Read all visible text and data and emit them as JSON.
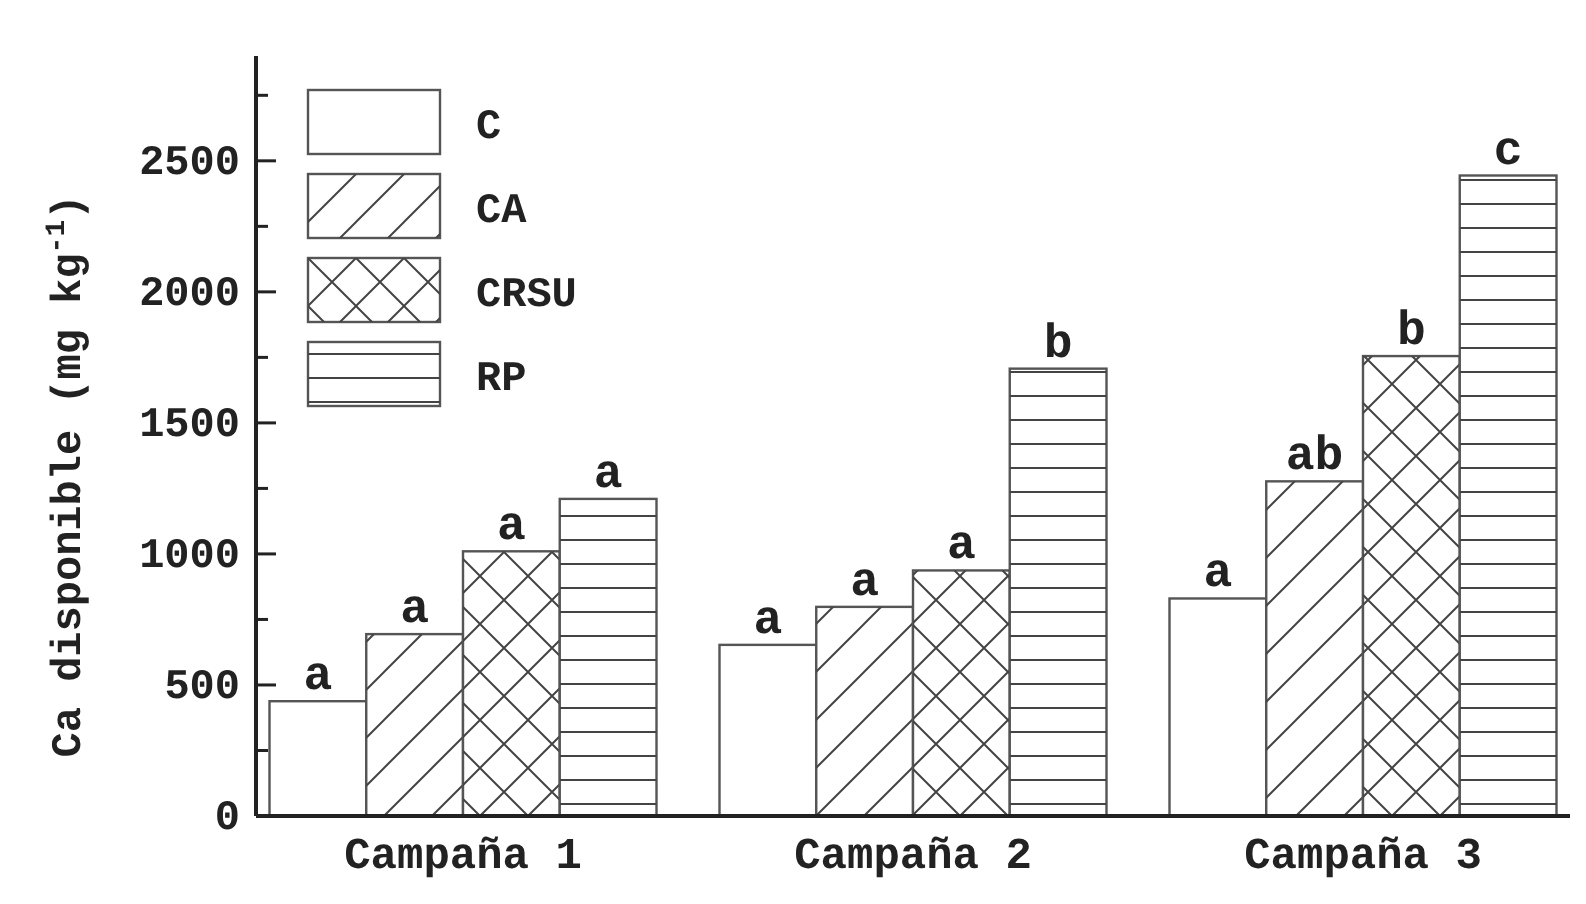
{
  "chart_data": {
    "type": "bar",
    "ylabel": "Ca disponible (mg kg$^{-1}$)",
    "categories": [
      "Campaña 1",
      "Campaña 2",
      "Campaña 3"
    ],
    "series": [
      {
        "name": "C",
        "color": "#ffffff",
        "values": [
          438,
          653,
          830
        ],
        "value_labels": [
          "a",
          "a",
          "a"
        ]
      },
      {
        "name": "CA",
        "color": "#ffffff",
        "values": [
          694,
          798,
          1277
        ],
        "value_labels": [
          "a",
          "a",
          "ab"
        ]
      },
      {
        "name": "CRSU",
        "color": "#ffffff",
        "values": [
          1010,
          937,
          1755
        ],
        "value_labels": [
          "a",
          "a",
          "b"
        ]
      },
      {
        "name": "RP",
        "color": "#ffffff",
        "values": [
          1210,
          1707,
          2444
        ],
        "value_labels": [
          "a",
          "b",
          "c"
        ]
      }
    ],
    "ylim": [
      0,
      2900
    ],
    "yticks": [
      0,
      {
        "value": 250,
        "label": null
      },
      500,
      {
        "value": 750,
        "label": null
      },
      1000,
      {
        "value": 1250,
        "label": null
      },
      1500,
      {
        "value": 1750,
        "label": null
      },
      2000,
      {
        "value": 2250,
        "label": null
      },
      2500,
      {
        "value": 2750,
        "label": null
      }
    ],
    "legend": "top left",
    "grid": false
  }
}
